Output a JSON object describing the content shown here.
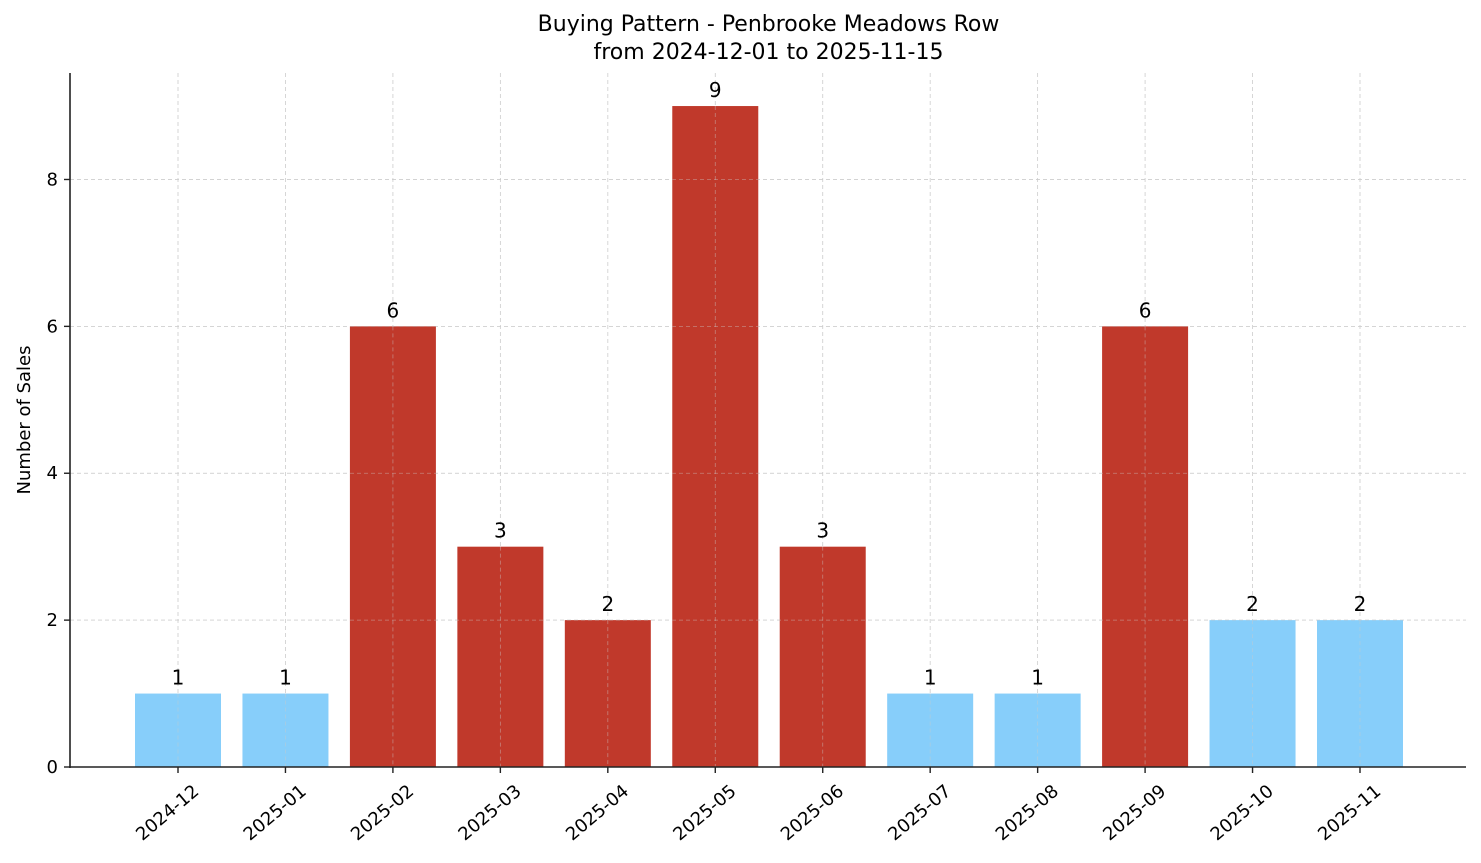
{
  "chart_data": {
    "type": "bar",
    "title": "Buying Pattern - Penbrooke Meadows Row",
    "subtitle": "from 2024-12-01 to 2025-11-15",
    "xlabel": "",
    "ylabel": "Number of Sales",
    "categories": [
      "2024-12",
      "2025-01",
      "2025-02",
      "2025-03",
      "2025-04",
      "2025-05",
      "2025-06",
      "2025-07",
      "2025-08",
      "2025-09",
      "2025-10",
      "2025-11"
    ],
    "values": [
      1,
      1,
      6,
      3,
      2,
      9,
      3,
      1,
      1,
      6,
      2,
      2
    ],
    "bar_colors": [
      "#87CEFA",
      "#87CEFA",
      "#C0392B",
      "#C0392B",
      "#C0392B",
      "#C0392B",
      "#C0392B",
      "#87CEFA",
      "#87CEFA",
      "#C0392B",
      "#87CEFA",
      "#87CEFA"
    ],
    "colors": {
      "high": "#C0392B",
      "low": "#87CEFA"
    },
    "data_labels": [
      "1",
      "1",
      "6",
      "3",
      "2",
      "9",
      "3",
      "1",
      "1",
      "6",
      "2",
      "2"
    ],
    "yticks": [
      0,
      2,
      4,
      6,
      8
    ],
    "ylim": [
      0,
      9.45
    ],
    "grid": true,
    "grid_style": "dashed",
    "xtick_rotation": 40,
    "legend": null
  }
}
